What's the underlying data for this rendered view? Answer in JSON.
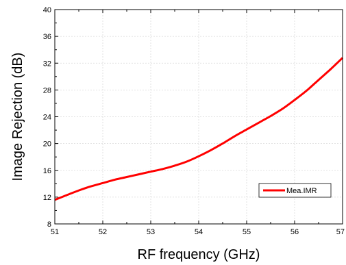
{
  "chart_data": {
    "type": "line",
    "title": "",
    "xlabel": "RF frequency (GHz)",
    "ylabel": "Image Rejection (dB)",
    "xlim": [
      51,
      57
    ],
    "ylim": [
      8,
      40
    ],
    "xticks": [
      51,
      52,
      53,
      54,
      55,
      56,
      57
    ],
    "yticks": [
      8,
      12,
      16,
      20,
      24,
      28,
      32,
      36,
      40
    ],
    "grid": true,
    "legend_position": "bottom-right",
    "series": [
      {
        "name": "Mea.IMR",
        "color": "#ff0000",
        "x": [
          51,
          51.25,
          51.5,
          51.75,
          52,
          52.25,
          52.5,
          52.75,
          53,
          53.25,
          53.5,
          53.75,
          54,
          54.25,
          54.5,
          54.75,
          55,
          55.25,
          55.5,
          55.75,
          56,
          56.25,
          56.5,
          56.75,
          57
        ],
        "y": [
          11.6,
          12.3,
          13.0,
          13.6,
          14.1,
          14.6,
          15.0,
          15.4,
          15.8,
          16.2,
          16.7,
          17.3,
          18.1,
          19.0,
          20.0,
          21.1,
          22.1,
          23.1,
          24.1,
          25.2,
          26.5,
          27.9,
          29.5,
          31.1,
          32.8
        ]
      }
    ]
  }
}
